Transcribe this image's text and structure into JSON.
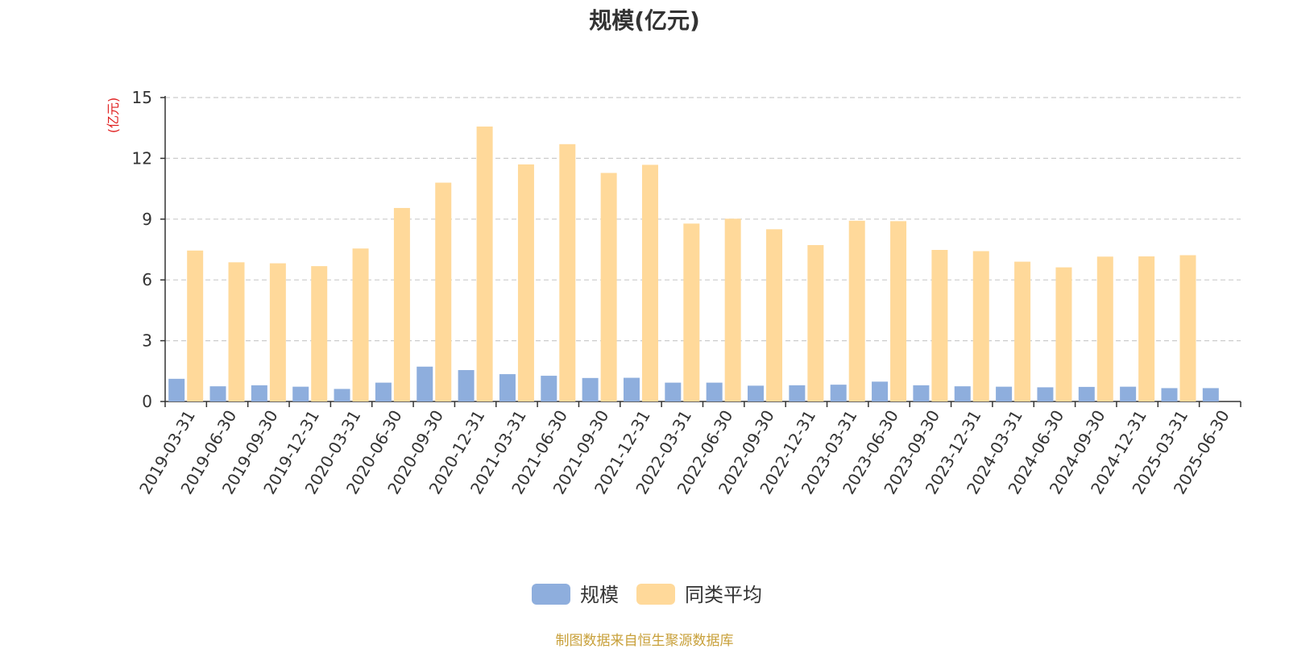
{
  "chart_data": {
    "type": "bar",
    "title": "规模(亿元)",
    "ylabel": "(亿元)",
    "xlabel": "",
    "ylim": [
      0,
      15
    ],
    "yticks": [
      0,
      3,
      6,
      9,
      12,
      15
    ],
    "grid": true,
    "legend_position": "bottom-center",
    "categories": [
      "2019-03-31",
      "2019-06-30",
      "2019-09-30",
      "2019-12-31",
      "2020-03-31",
      "2020-06-30",
      "2020-09-30",
      "2020-12-31",
      "2021-03-31",
      "2021-06-30",
      "2021-09-30",
      "2021-12-31",
      "2022-03-31",
      "2022-06-30",
      "2022-09-30",
      "2022-12-31",
      "2023-03-31",
      "2023-06-30",
      "2023-09-30",
      "2023-12-31",
      "2024-03-31",
      "2024-06-30",
      "2024-09-30",
      "2024-12-31",
      "2025-03-31",
      "2025-06-30"
    ],
    "series": [
      {
        "name": "规模",
        "color": "#8eaedd",
        "values": [
          1.12,
          0.75,
          0.8,
          0.73,
          0.62,
          0.93,
          1.72,
          1.55,
          1.35,
          1.27,
          1.16,
          1.17,
          0.93,
          0.93,
          0.78,
          0.8,
          0.83,
          0.98,
          0.8,
          0.75,
          0.73,
          0.7,
          0.72,
          0.73,
          0.66,
          0.66
        ]
      },
      {
        "name": "同类平均",
        "color": "#ffd99a",
        "values": [
          7.45,
          6.87,
          6.82,
          6.68,
          7.55,
          9.55,
          10.8,
          13.57,
          11.7,
          12.7,
          11.28,
          11.68,
          8.78,
          9.02,
          8.5,
          7.72,
          8.92,
          8.9,
          7.48,
          7.42,
          6.9,
          6.62,
          7.15,
          7.16,
          7.22,
          0
        ]
      }
    ]
  },
  "footer": {
    "source": "制图数据来自恒生聚源数据库"
  }
}
